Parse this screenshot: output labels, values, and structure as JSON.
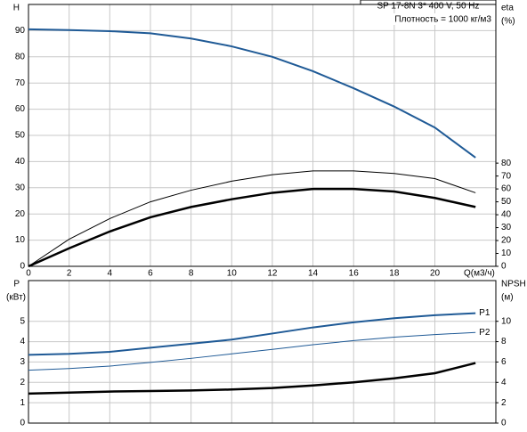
{
  "chart_data": [
    {
      "type": "line",
      "title": "SP 17-8N   3* 400 V, 50 Hz",
      "subtitle": "Плотность = 1000 кг/м3",
      "y_label": "H",
      "y2_label": "eta",
      "y2_unit": "(%)",
      "x_label": "Q(м3/ч)",
      "xlim": [
        0,
        23
      ],
      "xticks": [
        0,
        2,
        4,
        6,
        8,
        10,
        12,
        14,
        16,
        18,
        20
      ],
      "ylim": [
        0,
        100
      ],
      "yticks": [
        0,
        10,
        20,
        30,
        40,
        50,
        60,
        70,
        80,
        90
      ],
      "y2lim": [
        0,
        203
      ],
      "y2ticks": [
        0,
        10,
        20,
        30,
        40,
        50,
        60,
        70,
        80
      ],
      "grid": true,
      "x": [
        0,
        2,
        4,
        6,
        8,
        10,
        12,
        14,
        16,
        18,
        20,
        22
      ],
      "series": [
        {
          "color": "#1f5a96",
          "width": 2,
          "values": [
            90.5,
            90.2,
            89.8,
            89,
            87,
            84,
            80,
            74.5,
            68,
            61,
            53,
            41.5
          ]
        },
        {
          "color": "#000000",
          "width": 1,
          "axis": "y2",
          "values": [
            0,
            21,
            37,
            50,
            59,
            66,
            71,
            74,
            74,
            72,
            68,
            57
          ]
        },
        {
          "color": "#000000",
          "width": 2.5,
          "axis": "y2",
          "values": [
            0,
            14,
            27,
            38,
            46,
            52,
            57,
            60,
            60,
            58,
            53,
            46
          ]
        }
      ]
    },
    {
      "type": "line",
      "y_label": "P",
      "y_unit": "(кВт)",
      "y2_label": "NPSH",
      "y2_unit": "(м)",
      "xlim": [
        0,
        23
      ],
      "ylim": [
        0,
        7
      ],
      "yticks": [
        0,
        1,
        2,
        3,
        4,
        5
      ],
      "y2lim": [
        0,
        14
      ],
      "y2ticks": [
        0,
        2,
        4,
        6,
        8,
        10
      ],
      "grid": true,
      "x": [
        0,
        2,
        4,
        6,
        8,
        10,
        12,
        14,
        16,
        18,
        20,
        22
      ],
      "series": [
        {
          "name": "P1",
          "color": "#1f5a96",
          "width": 2,
          "values": [
            3.35,
            3.4,
            3.5,
            3.7,
            3.9,
            4.1,
            4.4,
            4.7,
            4.95,
            5.15,
            5.3,
            5.4
          ]
        },
        {
          "name": "P2",
          "color": "#1f5a96",
          "width": 1,
          "values": [
            2.6,
            2.68,
            2.8,
            2.98,
            3.18,
            3.4,
            3.62,
            3.85,
            4.05,
            4.22,
            4.35,
            4.45
          ]
        },
        {
          "color": "#000000",
          "width": 2.5,
          "axis": "y2",
          "values": [
            2.9,
            3.0,
            3.1,
            3.15,
            3.2,
            3.3,
            3.45,
            3.7,
            4.0,
            4.4,
            4.9,
            5.9
          ]
        }
      ]
    }
  ]
}
